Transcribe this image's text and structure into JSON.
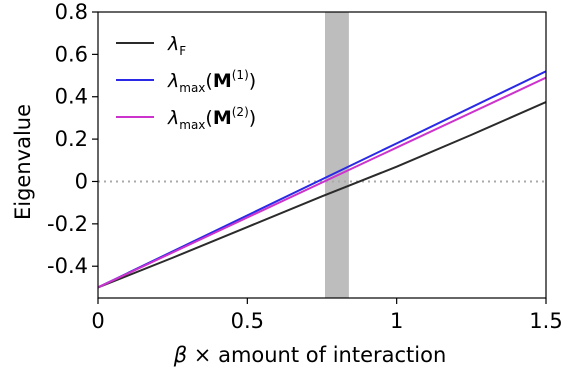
{
  "chart_data": {
    "type": "line",
    "xlabel_symbol": "β",
    "xlabel_text": " × amount of interaction",
    "ylabel": "Eigenvalue",
    "xlim": [
      0,
      1.5
    ],
    "ylim": [
      -0.55,
      0.8
    ],
    "x_ticks": [
      0,
      0.5,
      1,
      1.5
    ],
    "x_tick_labels": [
      "0",
      "0.5",
      "1",
      "1.5"
    ],
    "y_ticks": [
      -0.4,
      -0.2,
      0,
      0.2,
      0.4,
      0.6,
      0.8
    ],
    "y_tick_labels": [
      "-0.4",
      "-0.2",
      "0",
      "0.2",
      "0.4",
      "0.6",
      "0.8"
    ],
    "grid": false,
    "legend_position": "top-left",
    "reference_line": {
      "y": 0,
      "style": "dotted",
      "color": "#aaaaaa"
    },
    "shaded_band": {
      "x": [
        0.76,
        0.84
      ],
      "color": "#bdbdbd"
    },
    "series": [
      {
        "legend_main": "λ",
        "legend_sub": "F",
        "legend_mat": "",
        "legend_sup": "",
        "color": "#2b2b2b",
        "x": [
          0,
          0.25,
          0.5,
          0.75,
          0.84,
          1.0,
          1.25,
          1.5
        ],
        "y": [
          -0.5,
          -0.36,
          -0.215,
          -0.07,
          -0.02,
          0.07,
          0.22,
          0.375
        ]
      },
      {
        "legend_main": "λ",
        "legend_sub": "max",
        "legend_mat": "M",
        "legend_sup": "(1)",
        "color": "#2a2ae6",
        "x": [
          0,
          0.5,
          1.0,
          1.5
        ],
        "y": [
          -0.5,
          -0.16,
          0.18,
          0.52
        ]
      },
      {
        "legend_main": "λ",
        "legend_sub": "max",
        "legend_mat": "M",
        "legend_sup": "(2)",
        "color": "#cc33cc",
        "x": [
          0,
          0.5,
          1.0,
          1.5
        ],
        "y": [
          -0.5,
          -0.17,
          0.16,
          0.49
        ]
      }
    ]
  }
}
